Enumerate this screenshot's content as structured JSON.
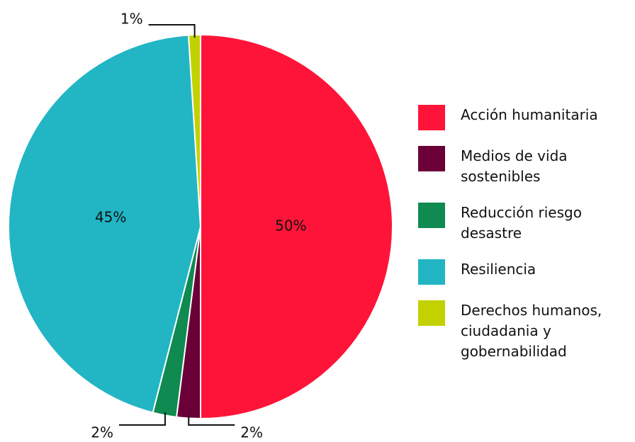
{
  "chart_data": {
    "type": "pie",
    "categories": [
      "Acción humanitaria",
      "Medios de vida sostenibles",
      "Reducción riesgo desastre",
      "Resiliencia",
      "Derechos humanos, ciudadania y gobernabilidad"
    ],
    "values": [
      50,
      2,
      2,
      45,
      1
    ],
    "value_labels": [
      "50%",
      "2%",
      "2%",
      "45%",
      "1%"
    ],
    "colors": [
      "#ff1439",
      "#6b0039",
      "#0f8a50",
      "#22b5c4",
      "#c3d100"
    ],
    "legend": "right"
  }
}
